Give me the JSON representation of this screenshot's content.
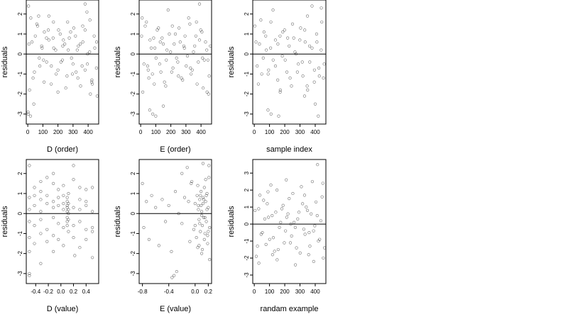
{
  "chart_data": [
    {
      "type": "scatter",
      "xlabel": "D (order)",
      "ylabel": "residuals",
      "xlim": [
        -10,
        470
      ],
      "ylim": [
        -3.5,
        2.7
      ],
      "xticks": [
        0,
        100,
        200,
        300,
        400
      ],
      "xtick_labels": [
        "0",
        "100",
        "200",
        "300",
        "400"
      ],
      "yticks": [
        -3,
        -2,
        -1,
        0,
        1,
        2
      ],
      "ytick_labels": [
        "-3",
        "-2",
        "-1",
        "0",
        "1",
        "2"
      ],
      "hline": 0,
      "grid": false,
      "x": [
        5,
        20,
        35,
        50,
        65,
        80,
        95,
        110,
        125,
        140,
        155,
        170,
        185,
        200,
        215,
        230,
        245,
        260,
        275,
        290,
        305,
        320,
        335,
        350,
        365,
        380,
        395,
        410,
        425,
        440,
        455,
        12,
        28,
        44,
        60,
        76,
        92,
        108,
        124,
        140,
        156,
        172,
        188,
        204,
        220,
        236,
        252,
        268,
        284,
        300,
        316,
        332,
        348,
        364,
        380,
        396,
        412,
        428,
        444,
        460,
        8,
        40,
        72,
        104,
        136,
        168,
        200,
        232,
        264,
        296,
        328,
        360,
        392,
        424,
        456,
        3,
        18,
        2,
        380,
        415
      ],
      "y": [
        2.4,
        1.8,
        -1.2,
        0.9,
        1.4,
        -0.6,
        0.3,
        1.1,
        -0.4,
        0.7,
        -1.5,
        1.6,
        0.2,
        -0.8,
        1.0,
        -0.3,
        0.5,
        -1.1,
        0.8,
        -0.2,
        1.3,
        -0.9,
        0.4,
        -1.6,
        0.6,
        1.2,
        -0.5,
        0.1,
        -1.3,
        0.9,
        -0.7,
        -1.8,
        0.6,
        -0.9,
        1.5,
        -0.2,
        0.4,
        -1.4,
        0.8,
        1.9,
        -0.6,
        0.3,
        -1.0,
        1.2,
        -0.4,
        0.7,
        -1.7,
        0.2,
        1.1,
        -0.5,
        0.9,
        -1.2,
        0.5,
        1.4,
        -0.8,
        0.0,
        1.7,
        -1.5,
        0.3,
        -2.1,
        0.5,
        -2.5,
        1.9,
        -0.3,
        1.2,
        0.8,
        -1.9,
        0.4,
        1.6,
        -1.0,
        0.2,
        -0.6,
        2.1,
        -1.4,
        0.6,
        -3.0,
        -3.1,
        -2.9,
        2.5,
        -2.0
      ]
    },
    {
      "type": "scatter",
      "xlabel": "E (order)",
      "ylabel": "residuals",
      "xlim": [
        -10,
        470
      ],
      "ylim": [
        -3.5,
        2.7
      ],
      "xticks": [
        0,
        100,
        200,
        300,
        400
      ],
      "xtick_labels": [
        "0",
        "100",
        "200",
        "300",
        "400"
      ],
      "yticks": [
        -3,
        -2,
        -1,
        0,
        1,
        2
      ],
      "ytick_labels": [
        "-3",
        "-2",
        "-1",
        "0",
        "1",
        "2"
      ],
      "hline": 0,
      "grid": false,
      "x": [
        6,
        22,
        38,
        54,
        70,
        86,
        102,
        118,
        134,
        150,
        166,
        182,
        198,
        214,
        230,
        246,
        262,
        278,
        294,
        310,
        326,
        342,
        358,
        374,
        390,
        406,
        422,
        438,
        454,
        14,
        30,
        46,
        62,
        78,
        94,
        110,
        126,
        142,
        158,
        174,
        190,
        206,
        222,
        238,
        254,
        270,
        286,
        302,
        318,
        334,
        350,
        366,
        382,
        398,
        414,
        430,
        446,
        462,
        10,
        50,
        90,
        130,
        170,
        210,
        250,
        290,
        330,
        370,
        410,
        450,
        60,
        80,
        100,
        150,
        390,
        440
      ],
      "y": [
        0.9,
        -0.5,
        1.6,
        -1.2,
        0.3,
        0.8,
        -0.2,
        1.3,
        -0.9,
        0.5,
        -1.6,
        2.2,
        0.1,
        -0.7,
        1.0,
        -0.4,
        0.6,
        -1.3,
        0.9,
        -0.1,
        1.5,
        -0.8,
        0.4,
        -1.5,
        0.7,
        1.1,
        -0.3,
        0.2,
        -1.1,
        -1.9,
        1.4,
        -0.6,
        0.7,
        -1.0,
        0.3,
        1.2,
        -0.5,
        0.8,
        -1.4,
        0.2,
        1.0,
        -0.9,
        0.5,
        -0.2,
        1.3,
        -1.2,
        0.4,
        -0.6,
        1.8,
        -1.0,
        0.1,
        0.9,
        -0.4,
        1.2,
        -1.7,
        0.6,
        -0.3,
        0.4,
        1.8,
        -0.8,
        -1.5,
        0.6,
        -0.3,
        1.4,
        -1.1,
        0.3,
        -0.7,
        1.6,
        -0.2,
        -2.0,
        -2.8,
        -3.0,
        -3.1,
        -2.6,
        2.5,
        -1.9
      ]
    },
    {
      "type": "scatter",
      "xlabel": "sample index",
      "ylabel": "residuals",
      "xlim": [
        -10,
        470
      ],
      "ylim": [
        -3.5,
        2.7
      ],
      "xticks": [
        0,
        100,
        200,
        300,
        400
      ],
      "xtick_labels": [
        "0",
        "100",
        "200",
        "300",
        "400"
      ],
      "yticks": [
        -3,
        -2,
        -1,
        0,
        1,
        2
      ],
      "ytick_labels": [
        "-3",
        "-2",
        "-1",
        "0",
        "1",
        "2"
      ],
      "hline": 0,
      "grid": false,
      "x": [
        4,
        19,
        34,
        49,
        64,
        79,
        94,
        109,
        124,
        139,
        154,
        169,
        184,
        199,
        214,
        229,
        244,
        259,
        274,
        289,
        304,
        319,
        334,
        349,
        364,
        379,
        394,
        409,
        424,
        439,
        454,
        11,
        27,
        43,
        59,
        75,
        91,
        107,
        123,
        139,
        155,
        171,
        187,
        203,
        219,
        235,
        251,
        267,
        283,
        299,
        315,
        331,
        347,
        363,
        379,
        395,
        411,
        427,
        443,
        459,
        90,
        110,
        160,
        170,
        330,
        350,
        400,
        420,
        440
      ],
      "y": [
        1.4,
        -0.6,
        0.5,
        -1.0,
        1.1,
        0.2,
        -0.8,
        1.6,
        -0.3,
        0.7,
        -1.3,
        0.9,
        -0.1,
        1.2,
        -0.9,
        0.4,
        -1.6,
        0.8,
        0.0,
        -0.5,
        1.3,
        -1.1,
        0.6,
        1.9,
        -0.4,
        0.3,
        -1.4,
        1.0,
        -0.7,
        0.2,
        -1.2,
        0.6,
        -1.5,
        1.7,
        -0.2,
        0.9,
        -1.0,
        0.3,
        2.2,
        -0.6,
        0.5,
        -1.8,
        1.1,
        -0.3,
        0.8,
        -1.2,
        1.5,
        0.1,
        -0.9,
        0.7,
        -0.4,
        1.2,
        -1.6,
        0.4,
        2.4,
        -0.8,
        0.6,
        -1.1,
        1.6,
        -0.5,
        -2.8,
        -3.0,
        -3.1,
        -1.9,
        -2.1,
        -1.8,
        -2.5,
        -3.1,
        2.3
      ]
    },
    {
      "type": "scatter",
      "xlabel": "D (value)",
      "ylabel": "residuals",
      "xlim": [
        -0.55,
        0.6
      ],
      "ylim": [
        -3.5,
        2.7
      ],
      "xticks": [
        -0.4,
        -0.2,
        0.0,
        0.2,
        0.4
      ],
      "xtick_labels": [
        "-0.4",
        "-0.2",
        "0.0",
        "0.2",
        "0.4"
      ],
      "yticks": [
        -3,
        -2,
        -1,
        0,
        1,
        2
      ],
      "ytick_labels": [
        "-3",
        "-2",
        "-1",
        "0",
        "1",
        "2"
      ],
      "hline": 0,
      "grid": false,
      "x": [
        -0.5,
        -0.5,
        -0.5,
        -0.5,
        -0.5,
        -0.5,
        -0.42,
        -0.42,
        -0.42,
        -0.42,
        -0.42,
        -0.32,
        -0.32,
        -0.32,
        -0.32,
        -0.32,
        -0.32,
        -0.22,
        -0.22,
        -0.22,
        -0.22,
        -0.22,
        -0.12,
        -0.12,
        -0.12,
        -0.12,
        -0.12,
        -0.12,
        -0.04,
        -0.04,
        -0.04,
        -0.04,
        -0.04,
        0.04,
        0.04,
        0.04,
        0.04,
        0.04,
        0.04,
        0.1,
        0.1,
        0.1,
        0.1,
        0.1,
        0.1,
        0.1,
        0.1,
        0.12,
        0.12,
        0.12,
        0.12,
        0.12,
        0.12,
        0.2,
        0.2,
        0.2,
        0.2,
        0.2,
        0.3,
        0.3,
        0.3,
        0.3,
        0.3,
        0.4,
        0.4,
        0.4,
        0.4,
        0.4,
        0.5,
        0.5,
        0.5,
        0.5,
        -0.5,
        -0.5,
        -0.32,
        0.22,
        0.5,
        -0.12
      ],
      "y": [
        2.4,
        0.8,
        -0.4,
        -1.2,
        -1.9,
        0.2,
        1.3,
        -0.6,
        0.4,
        -1.5,
        0.9,
        1.6,
        -0.3,
        0.7,
        -1.0,
        0.1,
        1.1,
        1.8,
        -0.8,
        0.5,
        -1.4,
        0.9,
        1.5,
        -0.2,
        0.6,
        -1.1,
        2.0,
        0.3,
        1.2,
        -0.5,
        0.4,
        -1.3,
        0.8,
        0.9,
        -0.7,
        0.2,
        -1.6,
        1.4,
        0.5,
        0.6,
        0.3,
        -0.2,
        0.1,
        -0.4,
        0.8,
        -0.6,
        0.4,
        0.2,
        -0.3,
        1.0,
        -0.9,
        0.5,
        0.0,
        1.7,
        -0.6,
        0.3,
        -1.2,
        2.4,
        1.3,
        -0.4,
        0.7,
        -1.7,
        0.2,
        1.2,
        -0.8,
        0.4,
        -1.3,
        0.6,
        1.3,
        -0.7,
        0.1,
        -2.2,
        -3.0,
        -3.1,
        -2.5,
        -2.1,
        -0.9,
        -1.9
      ]
    },
    {
      "type": "scatter",
      "xlabel": "E (value)",
      "ylabel": "residuals",
      "xlim": [
        -0.85,
        0.25
      ],
      "ylim": [
        -3.5,
        2.7
      ],
      "xticks": [
        -0.8,
        -0.4,
        0.0,
        0.2
      ],
      "xtick_labels": [
        "-0.8",
        "-0.4",
        "0.0",
        "0.2"
      ],
      "yticks": [
        -3,
        -2,
        -1,
        0,
        1,
        2
      ],
      "ytick_labels": [
        "-3",
        "-2",
        "-1",
        "0",
        "1",
        "2"
      ],
      "hline": 0,
      "grid": false,
      "x": [
        -0.8,
        -0.78,
        -0.74,
        -0.7,
        -0.66,
        -0.6,
        -0.55,
        -0.5,
        -0.45,
        -0.4,
        -0.36,
        -0.3,
        -0.25,
        -0.2,
        -0.16,
        -0.12,
        -0.08,
        -0.05,
        -0.02,
        0.0,
        0.02,
        0.03,
        0.05,
        0.06,
        0.07,
        0.08,
        0.09,
        0.1,
        0.11,
        0.12,
        0.13,
        0.14,
        0.15,
        0.16,
        0.17,
        0.18,
        0.19,
        0.2,
        0.21,
        0.22,
        0.04,
        0.06,
        0.08,
        0.1,
        0.12,
        0.14,
        0.16,
        0.18,
        0.2,
        0.05,
        0.07,
        0.09,
        0.11,
        0.13,
        0.15,
        0.17,
        0.19,
        0.21,
        -0.1,
        -0.06,
        0.0,
        0.04,
        -0.2,
        -0.28,
        -0.32,
        -0.35,
        0.22,
        0.1,
        0.12
      ],
      "y": [
        1.5,
        -0.7,
        0.6,
        -1.3,
        0.9,
        0.3,
        -1.6,
        0.7,
        -0.4,
        0.4,
        -1.9,
        1.1,
        0.0,
        -0.5,
        0.8,
        2.3,
        -1.4,
        1.6,
        -0.8,
        0.5,
        -1.2,
        0.9,
        0.2,
        -0.3,
        0.7,
        -0.9,
        0.4,
        0.1,
        -0.6,
        0.8,
        -0.2,
        1.3,
        -1.0,
        0.6,
        -0.4,
        1.0,
        -1.5,
        0.3,
        1.8,
        -0.7,
        1.4,
        -1.6,
        0.9,
        -0.1,
        0.5,
        -1.3,
        1.7,
        0.2,
        -0.9,
        0.4,
        -0.5,
        1.1,
        -1.8,
        0.7,
        -0.2,
        0.9,
        -1.1,
        2.4,
        0.6,
        1.5,
        -0.6,
        -1.7,
        2.0,
        -2.9,
        -3.1,
        -3.2,
        -2.3,
        -2.0,
        2.5
      ]
    },
    {
      "type": "scatter",
      "xlabel": "randam example",
      "ylabel": "residuals",
      "xlim": [
        -10,
        470
      ],
      "ylim": [
        -3.5,
        3.8
      ],
      "xticks": [
        0,
        100,
        200,
        300,
        400
      ],
      "xtick_labels": [
        "0",
        "100",
        "200",
        "300",
        "400"
      ],
      "yticks": [
        -3,
        -2,
        -1,
        0,
        1,
        2,
        3
      ],
      "ytick_labels": [
        "-3",
        "-2",
        "-1",
        "0",
        "1",
        "2",
        "3"
      ],
      "hline": 0,
      "grid": false,
      "x": [
        5,
        21,
        37,
        53,
        69,
        85,
        101,
        117,
        133,
        149,
        165,
        181,
        197,
        213,
        229,
        245,
        261,
        277,
        293,
        309,
        325,
        341,
        357,
        373,
        389,
        405,
        421,
        437,
        453,
        13,
        29,
        45,
        61,
        77,
        93,
        109,
        125,
        141,
        157,
        173,
        189,
        205,
        221,
        237,
        253,
        269,
        285,
        301,
        317,
        333,
        349,
        365,
        381,
        397,
        413,
        429,
        445,
        461,
        30,
        90,
        150,
        210,
        270,
        330,
        390,
        450,
        120,
        240,
        360,
        415
      ],
      "y": [
        0.8,
        -1.3,
        1.7,
        -0.5,
        0.3,
        1.2,
        -0.9,
        0.5,
        -1.6,
        2.0,
        -0.2,
        0.9,
        -1.1,
        0.4,
        1.5,
        -0.7,
        0.1,
        -1.4,
        0.7,
        2.2,
        -0.3,
        1.0,
        -1.8,
        0.6,
        -0.4,
        1.3,
        -1.0,
        0.2,
        -2.0,
        -1.9,
        0.9,
        -0.6,
        1.4,
        -1.2,
        0.4,
        2.3,
        -0.8,
        0.7,
        -1.5,
        0.1,
        1.1,
        -0.4,
        0.6,
        -1.1,
        1.8,
        -0.2,
        0.3,
        -1.7,
        1.2,
        -0.6,
        0.8,
        -1.3,
        2.5,
        -0.1,
        0.5,
        -0.9,
        1.6,
        -1.4,
        -2.3,
        1.9,
        -2.1,
        2.6,
        -2.4,
        1.7,
        -2.2,
        2.4,
        -1.8,
        0.0,
        -0.5,
        3.5
      ]
    }
  ]
}
